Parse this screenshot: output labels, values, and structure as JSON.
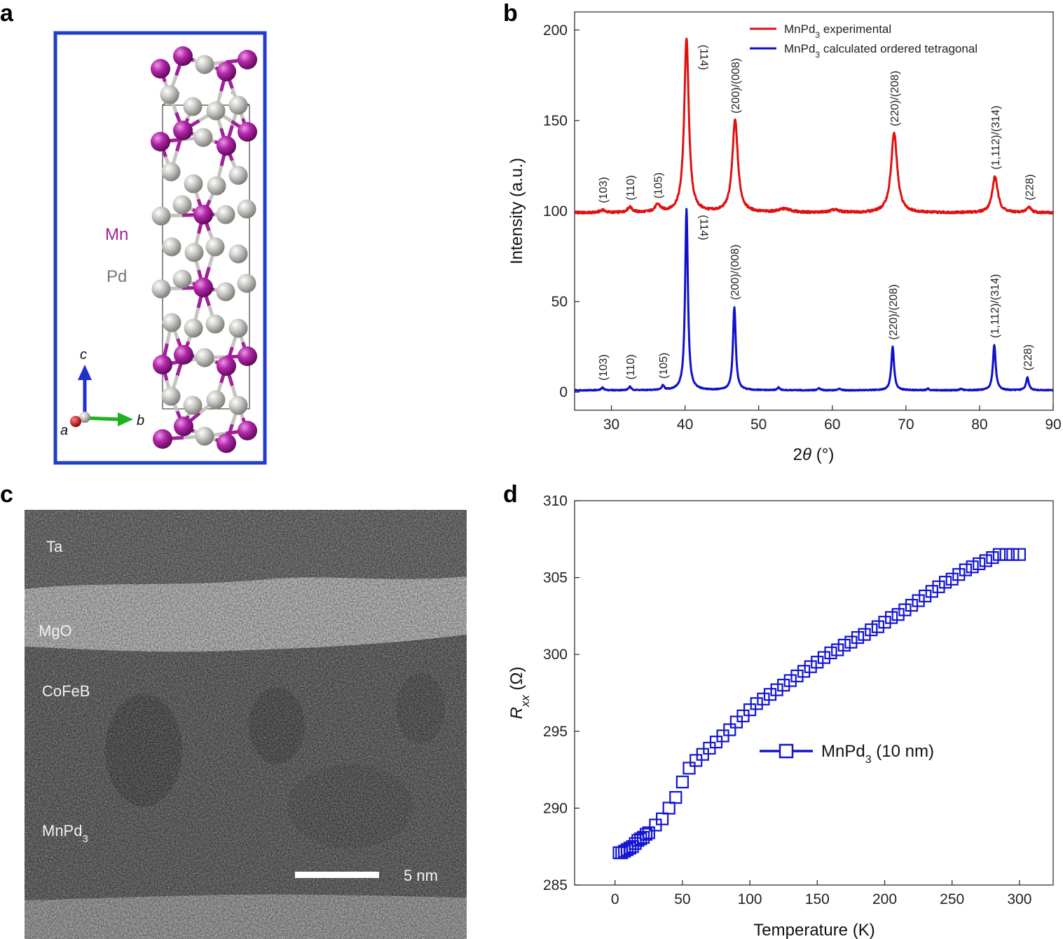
{
  "panels": {
    "a": "a",
    "b": "b",
    "c": "c",
    "d": "d"
  },
  "crystal": {
    "labels": {
      "mn": "Mn",
      "pd": "Pd",
      "axis_c": "c",
      "axis_a": "a",
      "axis_b": "b"
    },
    "colors": {
      "mn": "#a0209a",
      "pd": "#c8c8c4",
      "frame": "#1f3fc8"
    }
  },
  "tem": {
    "layers": [
      "Ta",
      "MgO",
      "CoFeB",
      "MnPd3"
    ],
    "scale_bar": "5 nm"
  },
  "chart_data": [
    {
      "panel": "b",
      "type": "line",
      "xlabel": "2θ (°)",
      "ylabel": "Intensity (a.u.)",
      "xlim": [
        25,
        90
      ],
      "ylim": [
        -10,
        210
      ],
      "xticks": [
        30,
        40,
        50,
        60,
        70,
        80,
        90
      ],
      "yticks": [
        0,
        50,
        100,
        150,
        200
      ],
      "legend_position": "top-right",
      "series": [
        {
          "name": "MnPd3 experimental",
          "legend_html": "MnPd<tspan baseline-shift='sub' font-size='12'>3</tspan> experimental",
          "color": "#e01010",
          "baseline": 99,
          "peaks": [
            {
              "x": 28.8,
              "height": 1.5,
              "width": 0.8,
              "label": "(103)"
            },
            {
              "x": 32.5,
              "height": 3,
              "width": 0.8,
              "label": "(110)"
            },
            {
              "x": 36.3,
              "height": 4,
              "width": 0.9,
              "label": "(105)"
            },
            {
              "x": 40.2,
              "height": 96,
              "width": 0.75,
              "label": "(114)"
            },
            {
              "x": 46.8,
              "height": 51,
              "width": 0.9,
              "label": "(200)/(008)"
            },
            {
              "x": 53.5,
              "height": 2,
              "width": 2.0
            },
            {
              "x": 60.3,
              "height": 1.5,
              "width": 1.5
            },
            {
              "x": 68.4,
              "height": 44,
              "width": 1.0,
              "label": "(220)/(208)"
            },
            {
              "x": 82.1,
              "height": 20,
              "width": 0.9,
              "label": "(1,112)/(314)"
            },
            {
              "x": 86.7,
              "height": 3,
              "width": 0.8,
              "label": "(228)"
            }
          ]
        },
        {
          "name": "MnPd3 calculated ordered tetragonal",
          "legend_html": "MnPd<tspan baseline-shift='sub' font-size='12'>3</tspan> calculated ordered tetragonal",
          "color": "#1010cc",
          "baseline": 1,
          "peaks": [
            {
              "x": 28.8,
              "height": 1.5,
              "width": 0.4,
              "label": "(103)"
            },
            {
              "x": 32.5,
              "height": 2,
              "width": 0.4,
              "label": "(110)"
            },
            {
              "x": 37.0,
              "height": 2.5,
              "width": 0.4,
              "label": "(105)"
            },
            {
              "x": 40.2,
              "height": 100,
              "width": 0.45,
              "label": "(114)"
            },
            {
              "x": 46.7,
              "height": 46,
              "width": 0.45,
              "label": "(200)/(008)"
            },
            {
              "x": 52.7,
              "height": 1.5,
              "width": 0.4
            },
            {
              "x": 58.2,
              "height": 1.2,
              "width": 0.4
            },
            {
              "x": 61.0,
              "height": 1,
              "width": 0.4
            },
            {
              "x": 68.2,
              "height": 24,
              "width": 0.45,
              "label": "(220)/(208)"
            },
            {
              "x": 73.0,
              "height": 0.8,
              "width": 0.4
            },
            {
              "x": 77.5,
              "height": 0.8,
              "width": 0.4
            },
            {
              "x": 82.0,
              "height": 25,
              "width": 0.45,
              "label": "(1,112)/(314)"
            },
            {
              "x": 86.5,
              "height": 7,
              "width": 0.45,
              "label": "(228)"
            }
          ]
        }
      ]
    },
    {
      "panel": "d",
      "type": "scatter",
      "xlabel": "Temperature (K)",
      "ylabel_main": "R",
      "ylabel_sub": "xx",
      "ylabel_unit": " (Ω)",
      "xlim": [
        -30,
        325
      ],
      "ylim": [
        285,
        310
      ],
      "xticks": [
        0,
        50,
        100,
        150,
        200,
        250,
        300
      ],
      "yticks": [
        285,
        290,
        295,
        300,
        305,
        310
      ],
      "legend_position": "center-right",
      "series": [
        {
          "name": "MnPd3 (10 nm)",
          "legend_html": "MnPd<tspan baseline-shift='sub' font-size='16'>3</tspan> (10 nm)",
          "color": "#1414d2",
          "x": [
            3,
            5,
            7,
            9,
            11,
            13,
            15,
            17,
            19,
            21,
            23,
            25,
            30,
            35,
            40,
            45,
            50,
            55,
            60,
            65,
            70,
            75,
            80,
            85,
            90,
            95,
            100,
            105,
            110,
            115,
            120,
            125,
            130,
            135,
            140,
            145,
            150,
            155,
            160,
            165,
            170,
            175,
            180,
            185,
            190,
            195,
            200,
            205,
            210,
            215,
            220,
            225,
            230,
            235,
            240,
            245,
            250,
            255,
            260,
            265,
            270,
            275,
            280,
            285,
            290,
            295,
            300
          ],
          "y": [
            287.1,
            287.1,
            287.2,
            287.3,
            287.4,
            287.5,
            287.7,
            287.9,
            288.0,
            288.1,
            288.3,
            288.4,
            288.9,
            289.3,
            290.0,
            290.7,
            291.7,
            292.6,
            293.1,
            293.5,
            293.9,
            294.3,
            294.7,
            295.1,
            295.6,
            296.0,
            296.4,
            296.8,
            297.1,
            297.4,
            297.7,
            298.0,
            298.3,
            298.6,
            298.9,
            299.2,
            299.5,
            299.8,
            300.1,
            300.3,
            300.6,
            300.8,
            301.1,
            301.3,
            301.6,
            301.8,
            302.1,
            302.4,
            302.6,
            302.9,
            303.2,
            303.5,
            303.8,
            304.1,
            304.4,
            304.7,
            304.9,
            305.2,
            305.5,
            305.7,
            305.9,
            306.1,
            306.3,
            306.5,
            306.5,
            306.5,
            306.5
          ]
        }
      ]
    }
  ]
}
